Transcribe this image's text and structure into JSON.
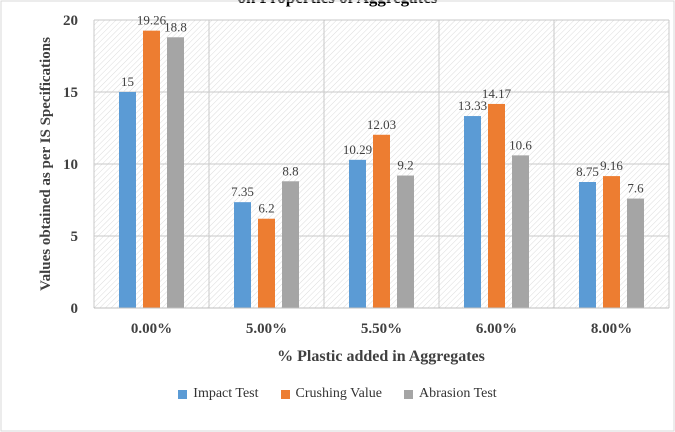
{
  "chart_data": {
    "type": "bar",
    "title": "",
    "partial_title": "on Properties of Aggregates",
    "xlabel": "% Plastic added in Aggregates",
    "ylabel": "Values obtained as per IS Specifications",
    "categories": [
      "0.00%",
      "5.00%",
      "5.50%",
      "6.00%",
      "8.00%"
    ],
    "ylim": [
      0,
      20
    ],
    "yticks": [
      0,
      5,
      10,
      15,
      20
    ],
    "grid": true,
    "legend_position": "bottom",
    "series": [
      {
        "name": "Impact Test",
        "color": "#5b9bd5",
        "values": [
          15,
          7.35,
          10.29,
          13.33,
          8.75
        ],
        "labels": [
          "15",
          "7.35",
          "10.29",
          "13.33",
          "8.75"
        ]
      },
      {
        "name": "Crushing Value",
        "color": "#ed7d31",
        "values": [
          19.26,
          6.2,
          12.03,
          14.17,
          9.16
        ],
        "labels": [
          "19.26",
          "6.2",
          "12.03",
          "14.17",
          "9.16"
        ]
      },
      {
        "name": "Abrasion Test",
        "color": "#a5a5a5",
        "values": [
          18.8,
          8.8,
          9.2,
          10.6,
          7.6
        ],
        "labels": [
          "18.8",
          "8.8",
          "9.2",
          "10.6",
          "7.6"
        ]
      }
    ]
  }
}
